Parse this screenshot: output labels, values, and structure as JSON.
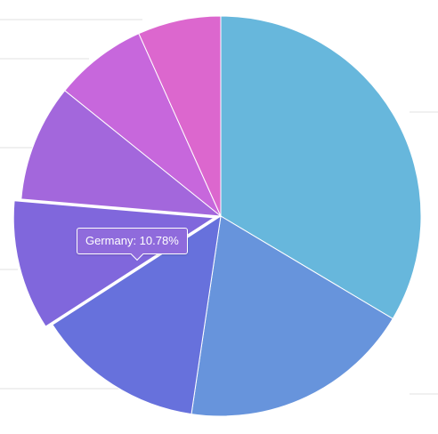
{
  "chart_data": {
    "type": "pie",
    "title": "",
    "series": [
      {
        "values": [
          {
            "value": 34.5,
            "color": "#67b7dc"
          },
          {
            "value": 19.3,
            "color": "#6794dc"
          },
          {
            "value": 13.9,
            "color": "#6771dc"
          },
          {
            "value": 10.78,
            "color": "#8067dc",
            "hover": true
          },
          {
            "value": 9.7,
            "color": "#a367dc"
          },
          {
            "value": 7.7,
            "color": "#c767dc"
          },
          {
            "value": 6.9,
            "color": "#dc67ce"
          }
        ]
      }
    ]
  },
  "tooltip": {
    "text": "Germany: 10.78%"
  }
}
